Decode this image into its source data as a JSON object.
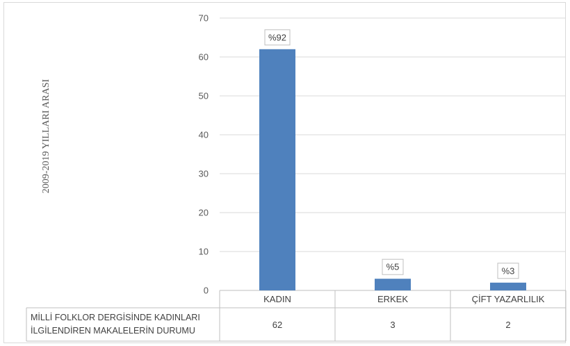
{
  "chart_data": {
    "type": "bar",
    "categories": [
      "KADIN",
      "ERKEK",
      "ÇİFT YAZARLILIK"
    ],
    "series": [
      {
        "values": [
          62,
          3,
          2
        ],
        "color": "#4f81bd"
      }
    ],
    "data_labels": [
      "%92",
      "%5",
      "%3"
    ],
    "ylabel": "2009-2019 YILLARI ARASI",
    "xlabel": "",
    "ylim": [
      0,
      70
    ],
    "yticks": [
      0,
      10,
      20,
      30,
      40,
      50,
      60,
      70
    ],
    "grid": true,
    "legend": "none",
    "data_table": {
      "row_label_lines": [
        "MİLLİ FOLKLOR DERGİSİNDE KADINLARI",
        "İLGİLENDİREN MAKALELERİN DURUMU"
      ],
      "values": [
        "62",
        "3",
        "2"
      ]
    }
  }
}
